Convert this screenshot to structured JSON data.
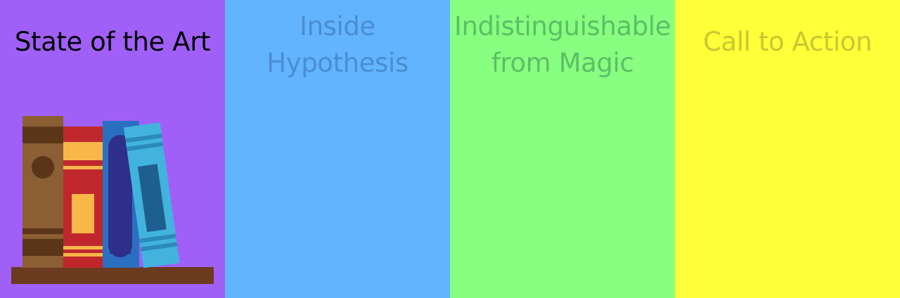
{
  "panels": [
    {
      "title": "State of the Art",
      "background": "#a060f8",
      "text_color": "#000000",
      "state": "active"
    },
    {
      "title": "Inside Hypothesis",
      "background": "#62b4ff",
      "text_color": "#4a8ed0",
      "state": "inactive"
    },
    {
      "title": "Indistinguishable from Magic",
      "background": "#88ff80",
      "text_color": "#5cbf66",
      "state": "inactive"
    },
    {
      "title": "Call to Action",
      "background": "#ffff3a",
      "text_color": "#c8c832",
      "state": "inactive"
    }
  ],
  "illustration": {
    "icon": "bookshelf-icon"
  }
}
